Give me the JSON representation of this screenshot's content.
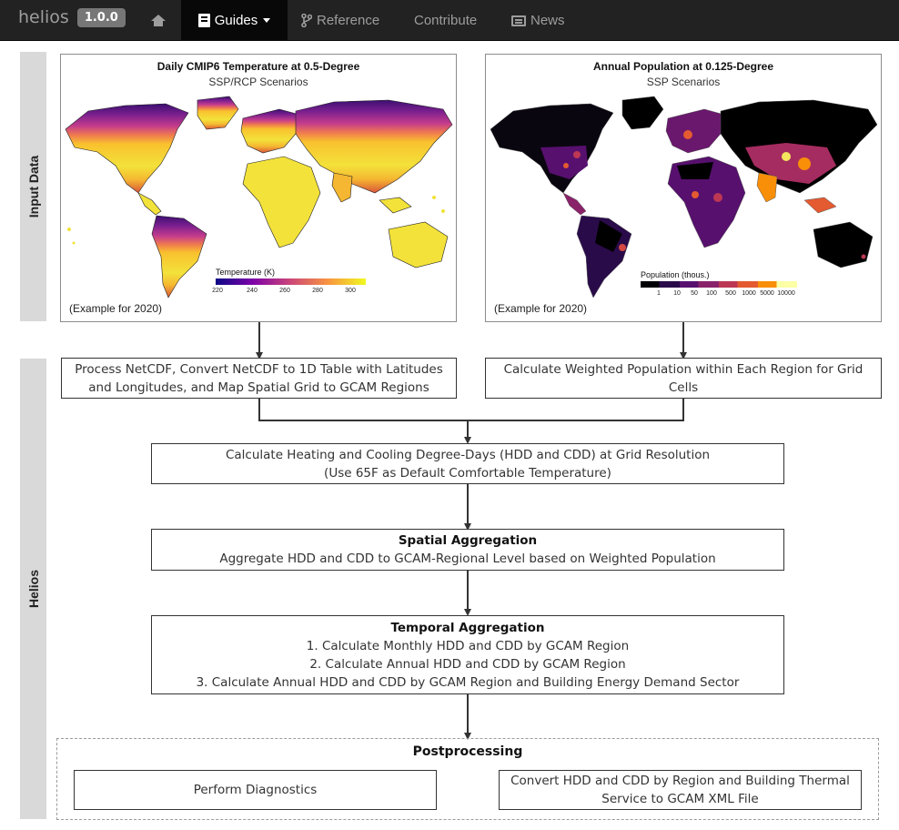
{
  "navbar": {
    "brand": "helios",
    "version": "1.0.0",
    "items": [
      {
        "label": "",
        "icon": "home-icon"
      },
      {
        "label": "Guides",
        "icon": "book-icon",
        "active": true,
        "dropdown": true
      },
      {
        "label": "Reference",
        "icon": "code-fork-icon"
      },
      {
        "label": "Contribute",
        "icon": ""
      },
      {
        "label": "News",
        "icon": "newspaper-icon"
      }
    ]
  },
  "sections": {
    "input_data": "Input Data",
    "helios": "Helios"
  },
  "maps": {
    "temperature": {
      "title": "Daily CMIP6 Temperature at 0.5-Degree",
      "subtitle": "SSP/RCP Scenarios",
      "legend_title": "Temperature (K)",
      "legend_ticks": [
        "220",
        "240",
        "260",
        "280",
        "300"
      ],
      "note": "(Example for 2020)"
    },
    "population": {
      "title": "Annual Population at 0.125-Degree",
      "subtitle": "SSP Scenarios",
      "legend_title": "Population (thous.)",
      "legend_ticks": [
        "1",
        "10",
        "50",
        "100",
        "500",
        "1000",
        "5000",
        "10000"
      ],
      "note": "(Example for 2020)"
    }
  },
  "flow": {
    "process_netcdf": "Process NetCDF, Convert NetCDF to 1D Table with Latitudes and Longitudes, and Map Spatial Grid to GCAM Regions",
    "weighted_population": "Calculate Weighted Population within Each Region for Grid Cells",
    "degree_days_line1": "Calculate Heating and Cooling Degree-Days (HDD and CDD) at Grid Resolution",
    "degree_days_line2": "(Use 65F as Default Comfortable Temperature)",
    "spatial": {
      "title": "Spatial Aggregation",
      "text": "Aggregate HDD and CDD to GCAM-Regional Level based on Weighted Population"
    },
    "temporal": {
      "title": "Temporal Aggregation",
      "steps": [
        "1. Calculate Monthly HDD and CDD by GCAM Region",
        "2. Calculate Annual HDD and CDD by GCAM Region",
        "3. Calculate Annual HDD and CDD by GCAM Region and Building Energy Demand Sector"
      ]
    },
    "postprocessing": {
      "title": "Postprocessing",
      "diagnostics": "Perform Diagnostics",
      "convert": "Convert HDD and CDD by Region and Building Thermal Service to GCAM XML File"
    }
  },
  "colors": {
    "navbar_bg": "#222222",
    "navbar_active": "#080808",
    "navbar_text": "#9d9d9d",
    "badge": "#777777",
    "side_bar": "#d9d9d9"
  }
}
